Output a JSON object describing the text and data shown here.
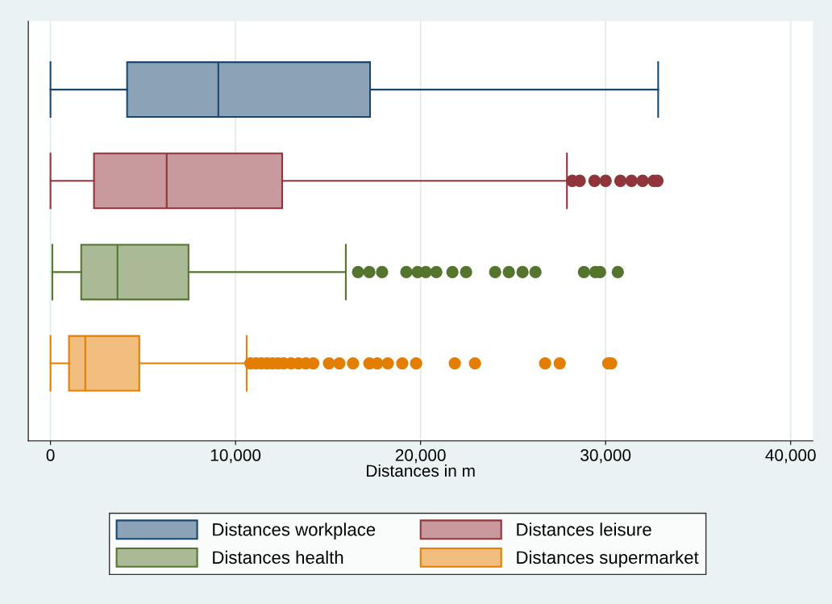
{
  "chart_data": {
    "type": "box",
    "orientation": "horizontal",
    "xlabel": "Distances in m",
    "categories": [
      null,
      null,
      null,
      null
    ],
    "xlim": [
      -1200,
      41200
    ],
    "xticks": [
      0,
      {
        "value": 10000,
        "label": "10,000"
      },
      {
        "value": 20000,
        "label": "20,000"
      },
      {
        "value": 30000,
        "label": "30,000"
      },
      {
        "value": 40000,
        "label": "40,000"
      }
    ],
    "tick_labels": "x",
    "grid": "x",
    "legend": "bottom",
    "series": [
      {
        "name": "Distances workplace",
        "color": "#1a476f",
        "boxes": [
          {
            "low": 0,
            "q1": 4140,
            "median": 9070,
            "q3": 17270,
            "high": 32840
          },
          null,
          null,
          null
        ]
      },
      {
        "name": "Distances leisure",
        "color": "#90353b",
        "boxes": [
          null,
          {
            "low": 0,
            "q1": 2350,
            "median": 6280,
            "q3": 12520,
            "high": 27910,
            "outliers": [
              28200,
              28600,
              29400,
              30000,
              30800,
              31400,
              32000,
              32600,
              32800
            ]
          },
          null,
          null
        ]
      },
      {
        "name": "Distances health",
        "color": "#55752f",
        "boxes": [
          null,
          null,
          {
            "low": 100,
            "q1": 1660,
            "median": 3620,
            "q3": 7460,
            "high": 15960,
            "outliers": [
              16620,
              17230,
              17920,
              19230,
              19840,
              20280,
              20850,
              21720,
              22460,
              24030,
              24770,
              25510,
              26210,
              28830,
              29440,
              29700,
              30660
            ]
          },
          null
        ]
      },
      {
        "name": "Distances supermarket",
        "color": "#e37e00",
        "boxes": [
          null,
          null,
          null,
          {
            "low": 0,
            "q1": 1000,
            "median": 1880,
            "q3": 4800,
            "high": 10600,
            "outliers": [
              10800,
              11100,
              11400,
              11700,
              12000,
              12300,
              12600,
              13000,
              13400,
              13800,
              14200,
              15050,
              15610,
              16350,
              17230,
              17660,
              18230,
              19010,
              19760,
              21850,
              22940,
              26730,
              27520,
              30140,
              30300
            ]
          }
        ]
      }
    ]
  }
}
